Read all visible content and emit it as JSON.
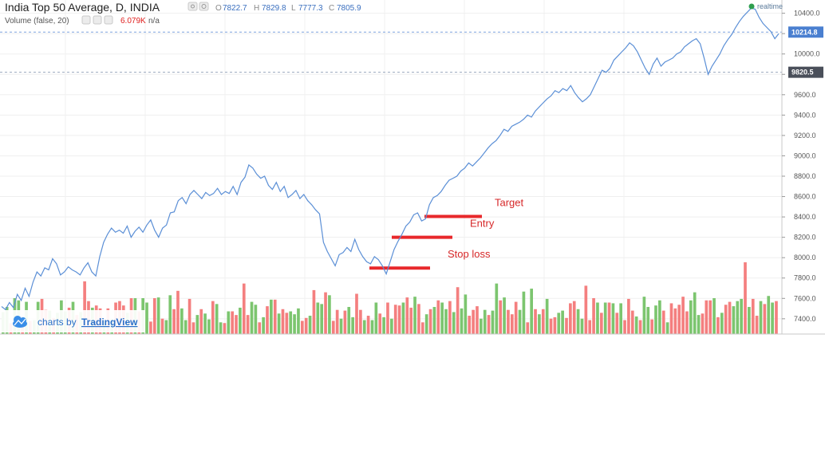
{
  "header": {
    "title": "India Top 50 Average, D, INDIA",
    "ohlc": [
      {
        "label": "O",
        "value": "7822.7"
      },
      {
        "label": "H",
        "value": "7829.8"
      },
      {
        "label": "L",
        "value": "7777.3"
      },
      {
        "label": "C",
        "value": "7805.9"
      }
    ],
    "volume_label": "Volume (false, 20)",
    "volume_value": "6.079K",
    "volume_extra": "n/a",
    "realtime_label": "realtime"
  },
  "branding": {
    "prefix": "charts by",
    "name": "TradingView"
  },
  "colors": {
    "line": "#5b8fd6",
    "vol_up": "#7cc56f",
    "vol_down": "#f47f7f",
    "annotation": "#e8282b",
    "realtime_dot": "#2e9e4e",
    "price_label": "#4a7fd0",
    "price_label2": "#4a4f5a"
  },
  "chart_data": {
    "type": "line",
    "y_axis": {
      "ticks": [
        7400,
        7600,
        7800,
        8000,
        8200,
        8400,
        8600,
        8800,
        9000,
        9200,
        9400,
        9600,
        9800,
        10000,
        10200,
        10400
      ],
      "tick_labels": [
        "7400.0",
        "7600.0",
        "7800.0",
        "8000.0",
        "8200.0",
        "8400.0",
        "8600.0",
        "8800.0",
        "9000.0",
        "9200.0",
        "9400.0",
        "9600.0",
        "9800.0",
        "10000.0",
        "10200.0",
        "10400.0"
      ],
      "ylim": [
        7250,
        10530
      ]
    },
    "price_labels": [
      {
        "text": "10214.8",
        "value": 10214.8
      },
      {
        "text": "9820.5",
        "value": 9820.5
      }
    ],
    "series": [
      {
        "values": [
          7520,
          7490,
          7560,
          7510,
          7640,
          7580,
          7700,
          7620,
          7760,
          7860,
          7820,
          7900,
          7880,
          7990,
          7940,
          7830,
          7860,
          7910,
          7880,
          7860,
          7830,
          7900,
          7950,
          7860,
          7820,
          8010,
          8150,
          8230,
          8290,
          8250,
          8270,
          8240,
          8310,
          8200,
          8260,
          8300,
          8250,
          8320,
          8370,
          8270,
          8200,
          8290,
          8320,
          8440,
          8450,
          8560,
          8590,
          8530,
          8620,
          8660,
          8620,
          8580,
          8640,
          8610,
          8630,
          8680,
          8620,
          8650,
          8630,
          8700,
          8620,
          8740,
          8790,
          8910,
          8880,
          8820,
          8780,
          8800,
          8710,
          8670,
          8740,
          8650,
          8700,
          8590,
          8620,
          8660,
          8580,
          8620,
          8560,
          8520,
          8470,
          8430,
          8150,
          8060,
          7990,
          7920,
          8030,
          8050,
          8100,
          8060,
          8180,
          8080,
          8010,
          7960,
          7940,
          8010,
          7980,
          7920,
          7840,
          7960,
          8080,
          8160,
          8230,
          8310,
          8350,
          8420,
          8440,
          8360,
          8380,
          8520,
          8590,
          8610,
          8650,
          8710,
          8760,
          8780,
          8800,
          8850,
          8880,
          8930,
          8900,
          8940,
          8980,
          9030,
          9080,
          9120,
          9150,
          9200,
          9260,
          9240,
          9290,
          9310,
          9330,
          9360,
          9400,
          9380,
          9440,
          9480,
          9520,
          9560,
          9590,
          9640,
          9620,
          9660,
          9640,
          9690,
          9620,
          9570,
          9530,
          9560,
          9600,
          9680,
          9760,
          9840,
          9820,
          9860,
          9940,
          9980,
          10020,
          10060,
          10110,
          10080,
          10020,
          9940,
          9860,
          9800,
          9900,
          9960,
          9880,
          9920,
          9940,
          9960,
          10000,
          10020,
          10070,
          10100,
          10130,
          10150,
          10100,
          9960,
          9800,
          9880,
          9940,
          10000,
          10080,
          10140,
          10190,
          10260,
          10320,
          10370,
          10410,
          10450,
          10440,
          10360,
          10300,
          10260,
          10220,
          10150,
          10200
        ]
      },
      {
        "name": "Volume",
        "values": [
          30,
          37,
          15,
          49,
          46,
          23,
          44,
          18,
          19,
          44,
          48,
          33,
          32,
          22,
          29,
          46,
          31,
          36,
          44,
          26,
          30,
          72,
          45,
          36,
          39,
          35,
          18,
          35,
          20,
          43,
          45,
          39,
          29,
          49,
          49,
          31,
          49,
          43,
          17,
          49,
          50,
          21,
          19,
          53,
          34,
          59,
          35,
          19,
          48,
          16,
          26,
          34,
          28,
          20,
          45,
          41,
          16,
          15,
          31,
          31,
          26,
          36,
          69,
          26,
          44,
          40,
          16,
          23,
          38,
          47,
          47,
          28,
          34,
          29,
          31,
          27,
          35,
          18,
          22,
          25,
          60,
          43,
          41,
          57,
          53,
          18,
          33,
          21,
          32,
          37,
          23,
          55,
          33,
          19,
          25,
          19,
          43,
          28,
          23,
          43,
          21,
          40,
          39,
          43,
          50,
          36,
          51,
          41,
          16,
          27,
          34,
          37,
          46,
          43,
          34,
          45,
          30,
          64,
          35,
          54,
          25,
          33,
          38,
          21,
          33,
          26,
          32,
          69,
          46,
          50,
          33,
          27,
          44,
          33,
          58,
          16,
          62,
          34,
          27,
          34,
          48,
          21,
          23,
          29,
          32,
          22,
          42,
          45,
          34,
          21,
          66,
          19,
          49,
          43,
          29,
          43,
          43,
          42,
          29,
          42,
          19,
          48,
          32,
          24,
          19,
          51,
          37,
          20,
          39,
          46,
          32,
          16,
          42,
          35,
          40,
          51,
          31,
          46,
          57,
          26,
          28,
          46,
          46,
          49,
          23,
          29,
          40,
          44,
          38,
          45,
          48,
          98,
          37,
          48,
          25,
          45,
          41,
          52,
          43,
          45
        ],
        "direction": [
          1,
          1,
          0,
          1,
          1,
          0,
          1,
          0,
          1,
          1,
          0,
          0,
          1,
          0,
          1,
          1,
          1,
          0,
          1,
          0,
          1,
          0,
          0,
          1,
          0,
          0,
          1,
          0,
          1,
          0,
          0,
          0,
          1,
          0,
          1,
          0,
          1,
          1,
          0,
          0,
          1,
          0,
          1,
          1,
          0,
          0,
          1,
          1,
          0,
          0,
          1,
          0,
          1,
          1,
          0,
          1,
          1,
          0,
          1,
          0,
          0,
          1,
          0,
          0,
          1,
          1,
          0,
          1,
          0,
          1,
          0,
          1,
          0,
          0,
          1,
          1,
          1,
          0,
          0,
          1,
          0,
          1,
          1,
          0,
          1,
          0,
          0,
          1,
          0,
          1,
          1,
          0,
          0,
          1,
          0,
          1,
          1,
          0,
          1,
          0,
          1,
          0,
          0,
          1,
          0,
          0,
          1,
          0,
          0,
          1,
          0,
          1,
          0,
          1,
          1,
          0,
          1,
          0,
          1,
          1,
          0,
          0,
          0,
          1,
          1,
          0,
          1,
          1,
          0,
          1,
          0,
          0,
          0,
          1,
          1,
          0,
          1,
          0,
          1,
          0,
          1,
          0,
          0,
          1,
          1,
          0,
          0,
          0,
          1,
          1,
          0,
          0,
          0,
          1,
          0,
          1,
          0,
          1,
          0,
          1,
          0,
          0,
          0,
          1,
          0,
          1,
          1,
          0,
          1,
          1,
          0,
          1,
          0,
          0,
          0,
          0,
          0,
          1,
          1,
          1,
          0,
          0,
          0,
          1,
          0,
          1,
          0,
          0,
          1,
          1,
          1,
          0,
          1,
          0,
          0,
          1,
          0,
          1,
          1,
          0
        ]
      }
    ],
    "annotations": [
      {
        "label": "Target",
        "value": 8405
      },
      {
        "label": "Entry",
        "value": 8200
      },
      {
        "label": "Stop loss",
        "value": 7898
      }
    ]
  }
}
